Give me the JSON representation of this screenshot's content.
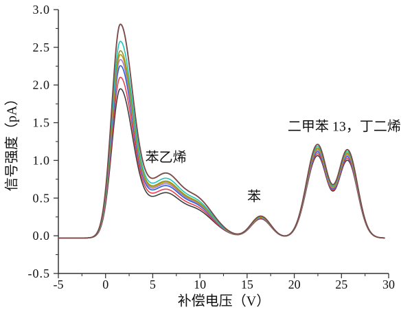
{
  "figure": {
    "background": "#ffffff",
    "axis_color": "#333333"
  },
  "chart_data": {
    "type": "line",
    "title": "",
    "xlabel": "补偿电压（V）",
    "ylabel": "信号强度（pA）",
    "xlim": [
      -5,
      30
    ],
    "ylim": [
      -0.5,
      3.0
    ],
    "grid": false,
    "legend": "none",
    "x_ticks": {
      "values": [
        -5,
        0,
        5,
        10,
        15,
        20,
        25,
        30
      ],
      "labels": [
        "-5",
        "0",
        "5",
        "10",
        "15",
        "20",
        "25",
        "30"
      ],
      "minor_step": 2.5
    },
    "y_ticks": {
      "values": [
        -0.5,
        0.0,
        0.5,
        1.0,
        1.5,
        2.0,
        2.5,
        3.0
      ],
      "labels": [
        "-0.5",
        "0.0",
        "0.5",
        "1.0",
        "1.5",
        "2.0",
        "2.5",
        "3.0"
      ],
      "minor_step": 0.25
    },
    "annotations": [
      {
        "text": "苯乙烯",
        "x": 6.4,
        "y": 1.06
      },
      {
        "text": "苯",
        "x": 15.75,
        "y": 0.54
      },
      {
        "text": "二甲苯 13，丁二烯",
        "x": 25.3,
        "y": 1.47
      }
    ],
    "baseline_pA": -0.03,
    "region_split_V": 13.5,
    "peak_positions_V": {
      "styrene_main": 1.55,
      "styrene_shoulder": 6.3,
      "benzene": 16.45,
      "xylene": 22.45,
      "butadiene": 25.65
    },
    "shape_model": {
      "description": "Base outer curve = baseline + sum of asymmetric gaussians [amplitude, center_V, sigma_left, sigma_right]; each series scales (peak region, right region) around the baseline.",
      "components": [
        [
          2.81,
          1.55,
          0.9,
          1.35
        ],
        [
          0.3,
          4.3,
          1.2,
          1.2
        ],
        [
          0.53,
          6.3,
          1.3,
          1.3
        ],
        [
          0.55,
          9.3,
          2.4,
          2.0
        ],
        [
          0.29,
          16.45,
          1.05,
          1.05
        ],
        [
          1.235,
          22.45,
          1.15,
          1.05
        ],
        [
          1.16,
          25.65,
          1.0,
          1.05
        ]
      ]
    },
    "series": [
      {
        "name": "curve-black",
        "color": "#3d3d3d",
        "scale_main": 0.698,
        "scale_right": 0.88,
        "peak_heights_pA": {
          "styrene": 1.93,
          "benzene": 0.22,
          "xylene": 1.06,
          "butadiene": 1.01
        }
      },
      {
        "name": "curve-red",
        "color": "#e8414e",
        "scale_main": 0.752,
        "scale_right": 0.9,
        "peak_heights_pA": {
          "styrene": 2.08,
          "benzene": 0.23,
          "xylene": 1.09,
          "butadiene": 1.04
        }
      },
      {
        "name": "curve-blue",
        "color": "#2e5cd8",
        "scale_main": 0.806,
        "scale_right": 0.92,
        "peak_heights_pA": {
          "styrene": 2.23,
          "benzene": 0.24,
          "xylene": 1.11,
          "butadiene": 1.06
        }
      },
      {
        "name": "curve-purple",
        "color": "#9f7bd3",
        "scale_main": 0.835,
        "scale_right": 0.935,
        "peak_heights_pA": {
          "styrene": 2.32,
          "benzene": 0.24,
          "xylene": 1.13,
          "butadiene": 1.08
        }
      },
      {
        "name": "curve-gold",
        "color": "#c59312",
        "scale_main": 0.858,
        "scale_right": 0.95,
        "peak_heights_pA": {
          "styrene": 2.38,
          "benzene": 0.25,
          "xylene": 1.15,
          "butadiene": 1.09
        }
      },
      {
        "name": "curve-olive",
        "color": "#93991f",
        "scale_main": 0.876,
        "scale_right": 0.963,
        "peak_heights_pA": {
          "styrene": 2.43,
          "benzene": 0.25,
          "xylene": 1.17,
          "butadiene": 1.11
        }
      },
      {
        "name": "curve-cyan",
        "color": "#1ec6b9",
        "scale_main": 0.92,
        "scale_right": 0.98,
        "peak_heights_pA": {
          "styrene": 2.56,
          "benzene": 0.25,
          "xylene": 1.19,
          "butadiene": 1.13
        }
      },
      {
        "name": "curve-brown",
        "color": "#7c4a48",
        "scale_main": 1.0,
        "scale_right": 1.0,
        "peak_heights_pA": {
          "styrene": 2.78,
          "benzene": 0.26,
          "xylene": 1.21,
          "butadiene": 1.15
        }
      }
    ]
  }
}
